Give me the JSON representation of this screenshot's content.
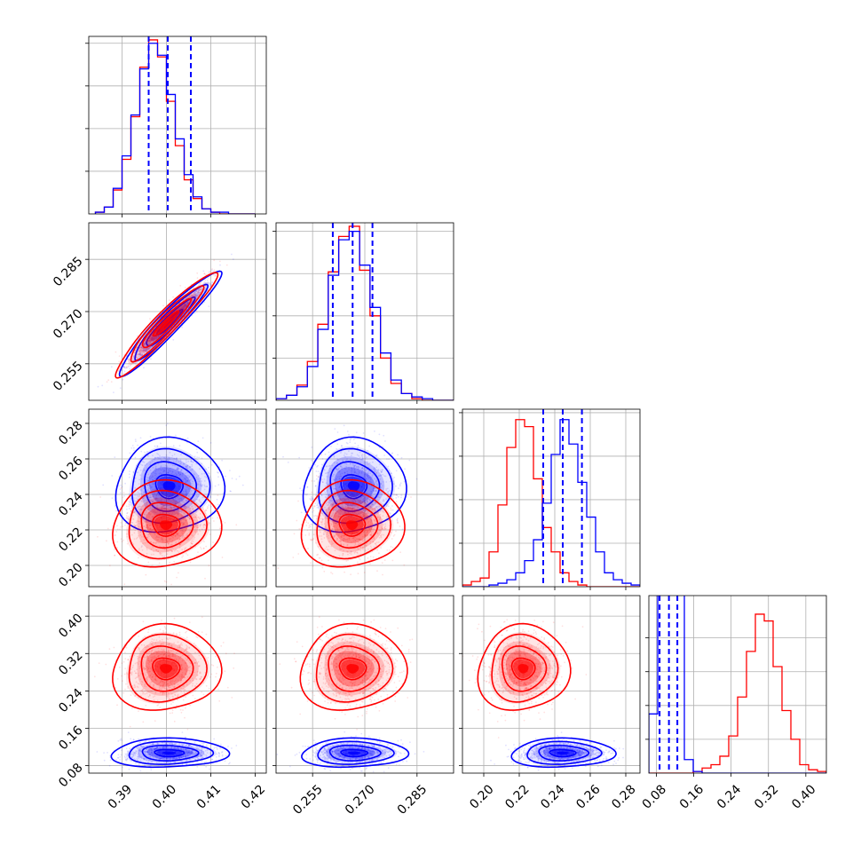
{
  "chart_data": {
    "type": "corner",
    "title": "",
    "grid": true,
    "colors": {
      "series_a": "#0000ff",
      "series_b": "#ff0000",
      "grid": "#b0b0b0",
      "axes": "#000000"
    },
    "series": [
      {
        "key": "series_a",
        "color": "#0000ff",
        "quantile_lines": [
          0.396,
          0.4003,
          0.4055
        ]
      },
      {
        "key": "series_b",
        "color": "#ff0000"
      }
    ],
    "parameters": [
      {
        "range": [
          0.3825,
          0.4225
        ],
        "ticks": [
          0.39,
          0.4,
          0.41,
          0.42
        ],
        "tick_labels": [
          "0.39",
          "0.40",
          "0.41",
          "0.42"
        ],
        "hist": {
          "bins": [
            0.384,
            0.386,
            0.388,
            0.39,
            0.392,
            0.394,
            0.396,
            0.398,
            0.4,
            0.402,
            0.404,
            0.406,
            0.408,
            0.41,
            0.412,
            0.414,
            0.416,
            0.418,
            0.42
          ],
          "series_a": [
            0.01,
            0.04,
            0.15,
            0.34,
            0.58,
            0.85,
            1.0,
            0.93,
            0.7,
            0.44,
            0.23,
            0.1,
            0.03,
            0.01,
            0.01,
            0.0,
            0.0,
            0.0,
            0.0
          ],
          "series_b": [
            0.01,
            0.04,
            0.14,
            0.32,
            0.57,
            0.86,
            1.02,
            0.92,
            0.66,
            0.4,
            0.2,
            0.09,
            0.03,
            0.01,
            0.0,
            0.0,
            0.0,
            0.0,
            0.0
          ]
        }
      },
      {
        "range": [
          0.2445,
          0.2955
        ],
        "ticks": [
          0.255,
          0.27,
          0.285
        ],
        "tick_labels": [
          "0.255",
          "0.270",
          "0.285"
        ],
        "quantile_lines": [
          0.2608,
          0.2665,
          0.2722
        ],
        "hist": {
          "bins": [
            0.2445,
            0.2475,
            0.2505,
            0.2535,
            0.2565,
            0.2595,
            0.2625,
            0.2655,
            0.2685,
            0.2715,
            0.2745,
            0.2775,
            0.2805,
            0.2835,
            0.2865,
            0.2895,
            0.2925,
            0.2955
          ],
          "series_a": [
            0.01,
            0.03,
            0.08,
            0.2,
            0.42,
            0.74,
            0.95,
            1.0,
            0.8,
            0.55,
            0.28,
            0.12,
            0.04,
            0.02,
            0.01,
            0.0,
            0.0
          ],
          "series_b": [
            0.01,
            0.03,
            0.09,
            0.23,
            0.45,
            0.76,
            0.97,
            1.03,
            0.77,
            0.5,
            0.25,
            0.1,
            0.04,
            0.01,
            0.0,
            0.0,
            0.0
          ]
        }
      },
      {
        "range": [
          0.188,
          0.288
        ],
        "ticks": [
          0.2,
          0.22,
          0.24,
          0.26,
          0.28
        ],
        "tick_labels": [
          "0.20",
          "0.22",
          "0.24",
          "0.26",
          "0.28"
        ],
        "quantile_lines": [
          0.2335,
          0.2445,
          0.2553
        ],
        "hist": {
          "bins": [
            0.188,
            0.193,
            0.198,
            0.203,
            0.208,
            0.213,
            0.218,
            0.223,
            0.228,
            0.233,
            0.238,
            0.243,
            0.248,
            0.253,
            0.258,
            0.263,
            0.268,
            0.273,
            0.278,
            0.283,
            0.288
          ],
          "series_a": [
            0.0,
            0.0,
            0.0,
            0.01,
            0.02,
            0.04,
            0.08,
            0.15,
            0.27,
            0.48,
            0.76,
            0.96,
            0.82,
            0.6,
            0.4,
            0.2,
            0.08,
            0.04,
            0.02,
            0.01
          ],
          "series_b": [
            0.01,
            0.03,
            0.05,
            0.2,
            0.47,
            0.8,
            0.96,
            0.92,
            0.62,
            0.34,
            0.2,
            0.08,
            0.03,
            0.01,
            0.0,
            0.0,
            0.0,
            0.0,
            0.0,
            0.0
          ]
        }
      },
      {
        "range": [
          0.064,
          0.444
        ],
        "ticks": [
          0.08,
          0.16,
          0.24,
          0.32,
          0.4
        ],
        "tick_labels": [
          "0.08",
          "0.16",
          "0.24",
          "0.32",
          "0.40"
        ],
        "quantile_lines": [
          0.087,
          0.107,
          0.125
        ],
        "hist": {
          "bins": [
            0.064,
            0.083,
            0.102,
            0.121,
            0.14,
            0.159,
            0.178,
            0.197,
            0.216,
            0.235,
            0.254,
            0.273,
            0.292,
            0.311,
            0.33,
            0.349,
            0.368,
            0.387,
            0.406,
            0.425,
            0.444
          ],
          "series_a": [
            0.35,
            8.0,
            8.0,
            1.2,
            0.08,
            0.01,
            0.0,
            0.0,
            0.0,
            0.0,
            0.0,
            0.0,
            0.0,
            0.0,
            0.0,
            0.0,
            0.0,
            0.0,
            0.0,
            0.0
          ],
          "series_b": [
            0.0,
            0.0,
            0.0,
            0.0,
            0.0,
            0.01,
            0.03,
            0.05,
            0.1,
            0.22,
            0.45,
            0.72,
            0.94,
            0.9,
            0.63,
            0.37,
            0.2,
            0.05,
            0.02,
            0.01
          ]
        }
      }
    ],
    "pairs": [
      {
        "row": 1,
        "col": 0,
        "series_a": {
          "mean": [
            0.4007,
            0.2668
          ],
          "sd": [
            0.0045,
            0.0058
          ],
          "corr": 0.95
        },
        "series_b": {
          "mean": [
            0.3998,
            0.2664
          ],
          "sd": [
            0.0045,
            0.0058
          ],
          "corr": 0.95
        }
      },
      {
        "row": 2,
        "col": 0,
        "series_a": {
          "mean": [
            0.4006,
            0.2446
          ],
          "sd": [
            0.0048,
            0.0107
          ],
          "corr": 0.0
        },
        "series_b": {
          "mean": [
            0.3999,
            0.2228
          ],
          "sd": [
            0.0048,
            0.0098
          ],
          "corr": 0.0
        }
      },
      {
        "row": 2,
        "col": 1,
        "series_a": {
          "mean": [
            0.2668,
            0.2446
          ],
          "sd": [
            0.0058,
            0.0107
          ],
          "corr": 0.0
        },
        "series_b": {
          "mean": [
            0.2663,
            0.2228
          ],
          "sd": [
            0.0058,
            0.0098
          ],
          "corr": 0.0
        }
      },
      {
        "row": 3,
        "col": 0,
        "series_a": {
          "mean": [
            0.4006,
            0.107
          ],
          "sd": [
            0.0052,
            0.0125
          ],
          "corr": 0.0
        },
        "series_b": {
          "mean": [
            0.3999,
            0.288
          ],
          "sd": [
            0.0048,
            0.037
          ],
          "corr": 0.0
        }
      },
      {
        "row": 3,
        "col": 1,
        "series_a": {
          "mean": [
            0.2669,
            0.107
          ],
          "sd": [
            0.006,
            0.0125
          ],
          "corr": 0.0
        },
        "series_b": {
          "mean": [
            0.2665,
            0.288
          ],
          "sd": [
            0.006,
            0.037
          ],
          "corr": 0.0
        }
      },
      {
        "row": 3,
        "col": 2,
        "series_a": {
          "mean": [
            0.2444,
            0.107
          ],
          "sd": [
            0.0115,
            0.0125
          ],
          "corr": 0.0
        },
        "series_b": {
          "mean": [
            0.2222,
            0.288
          ],
          "sd": [
            0.0102,
            0.037
          ],
          "corr": 0.0
        }
      }
    ],
    "contour_levels_sigma": [
      0.5,
      1.0,
      1.5,
      2.0
    ]
  }
}
